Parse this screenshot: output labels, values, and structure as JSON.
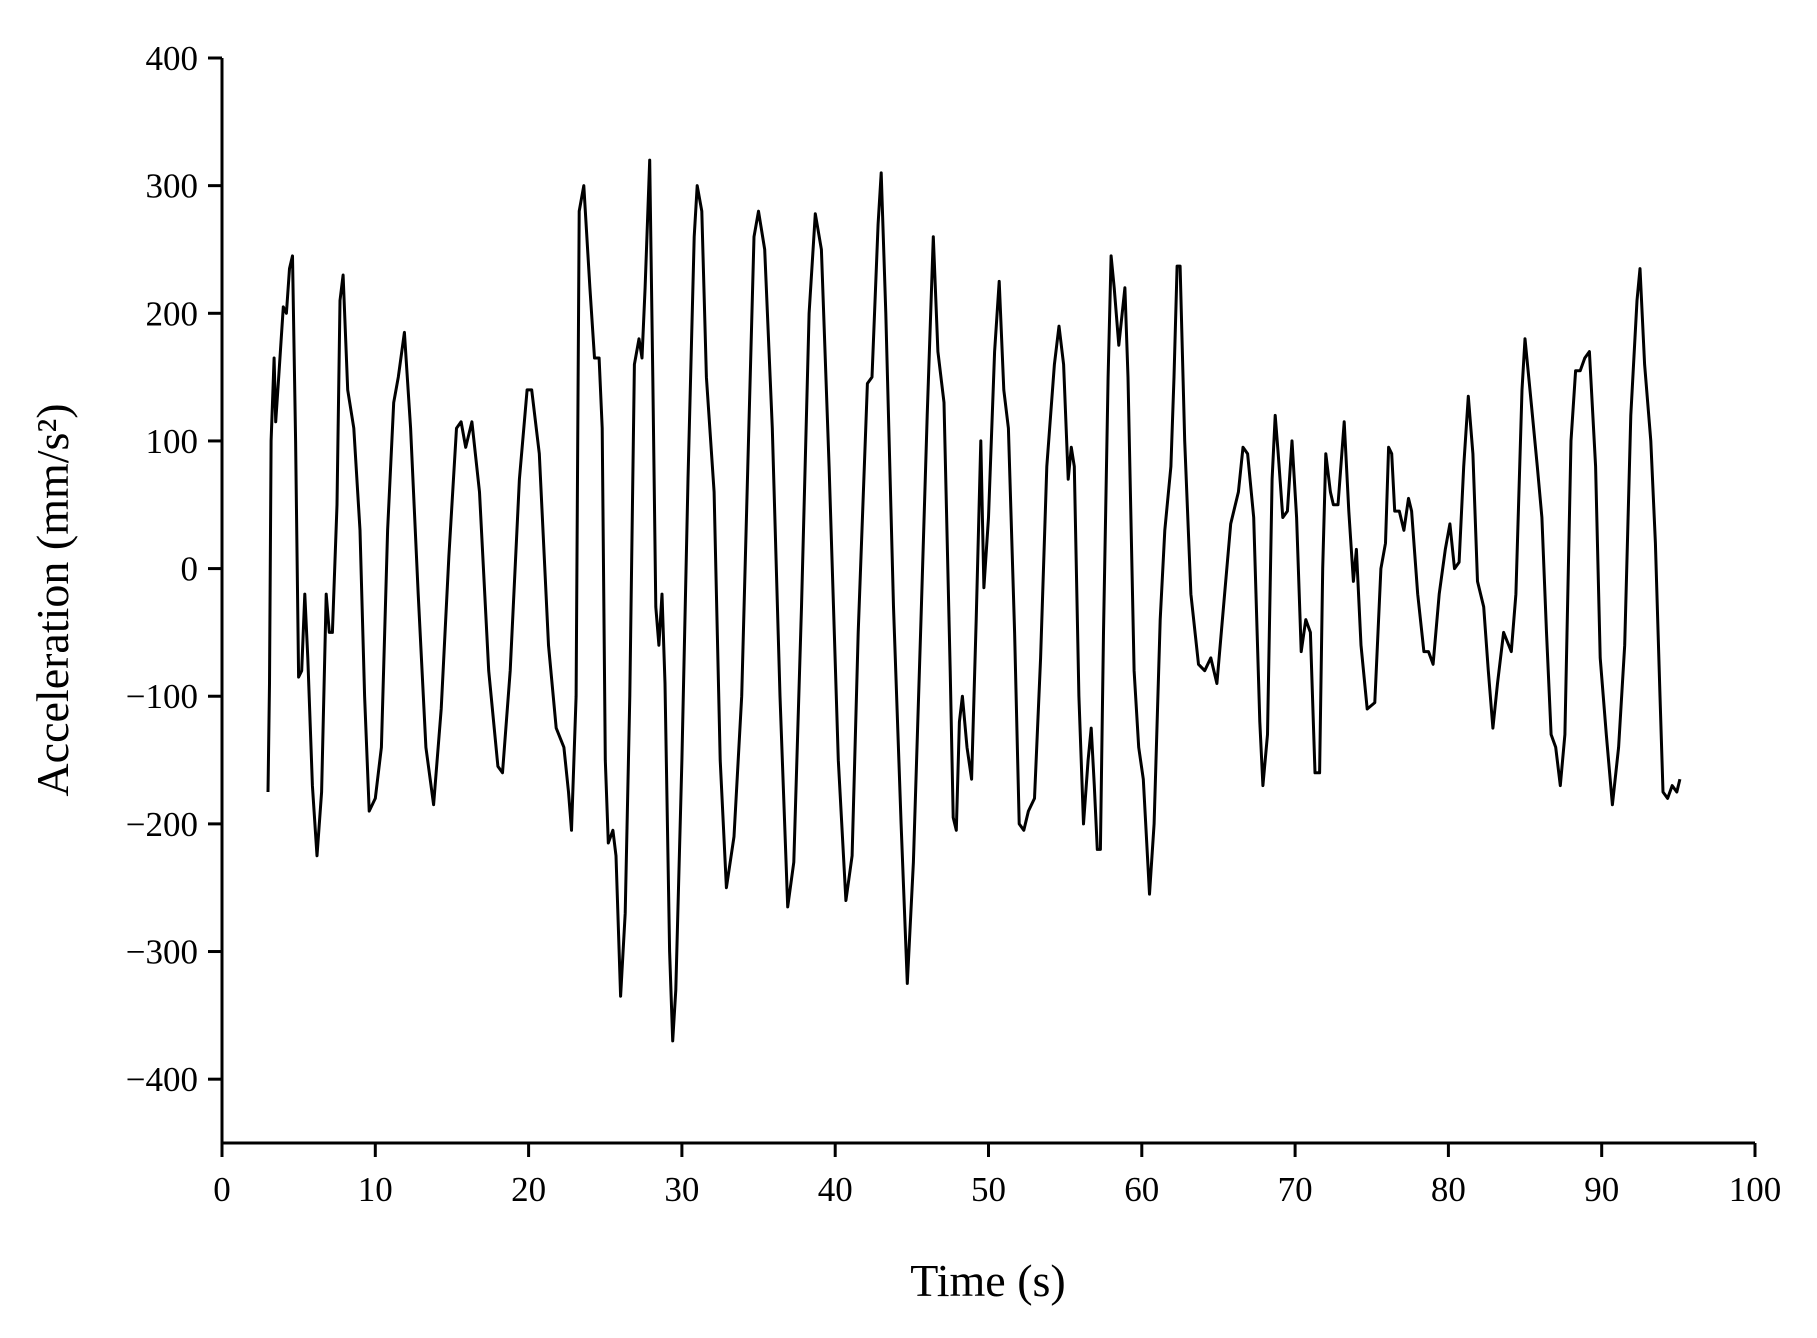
{
  "chart_data": {
    "type": "line",
    "xlabel": "Time (s)",
    "ylabel": "Acceleration (mm/s²)",
    "xlim": [
      0,
      100
    ],
    "xticks": [
      0,
      10,
      20,
      30,
      40,
      50,
      60,
      70,
      80,
      90,
      100
    ],
    "ylim": [
      -450,
      400
    ],
    "yticks": [
      {
        "value": -400,
        "label": "−400"
      },
      {
        "value": -300,
        "label": "−300"
      },
      {
        "value": -200,
        "label": "−200"
      },
      {
        "value": -100,
        "label": "−100"
      },
      0,
      100,
      200,
      300,
      400
    ],
    "grid": false,
    "color": "#000000",
    "x": [
      3.0,
      3.1,
      3.2,
      3.4,
      3.5,
      3.7,
      4.0,
      4.2,
      4.4,
      4.6,
      4.8,
      5.0,
      5.2,
      5.4,
      5.6,
      5.9,
      6.2,
      6.5,
      6.8,
      7.0,
      7.2,
      7.5,
      7.7,
      7.9,
      8.2,
      8.6,
      9.0,
      9.3,
      9.6,
      10.0,
      10.4,
      10.8,
      11.2,
      11.5,
      11.9,
      12.3,
      12.8,
      13.3,
      13.8,
      14.3,
      14.8,
      15.3,
      15.6,
      15.9,
      16.3,
      16.8,
      17.4,
      18.0,
      18.3,
      18.8,
      19.4,
      19.9,
      20.2,
      20.7,
      21.3,
      21.8,
      22.3,
      22.6,
      22.8,
      23.1,
      23.3,
      23.6,
      24.0,
      24.3,
      24.6,
      24.8,
      25.0,
      25.2,
      25.5,
      25.7,
      26.0,
      26.3,
      26.6,
      26.9,
      27.2,
      27.4,
      27.6,
      27.9,
      28.1,
      28.3,
      28.5,
      28.7,
      28.9,
      29.2,
      29.4,
      29.6,
      30.0,
      30.4,
      30.8,
      31.0,
      31.3,
      31.6,
      32.1,
      32.5,
      32.9,
      33.4,
      33.9,
      34.3,
      34.7,
      35.0,
      35.4,
      35.9,
      36.4,
      36.9,
      37.3,
      37.8,
      38.3,
      38.7,
      39.1,
      39.6,
      40.2,
      40.7,
      41.1,
      41.5,
      42.1,
      42.4,
      42.8,
      43.0,
      43.3,
      43.8,
      44.3,
      44.7,
      45.1,
      45.6,
      46.0,
      46.4,
      46.7,
      47.1,
      47.5,
      47.7,
      47.9,
      48.1,
      48.3,
      48.6,
      48.9,
      49.2,
      49.5,
      49.7,
      50.0,
      50.4,
      50.7,
      51.0,
      51.3,
      51.7,
      52.0,
      52.3,
      52.6,
      53.0,
      53.4,
      53.8,
      54.3,
      54.6,
      54.9,
      55.2,
      55.4,
      55.6,
      55.9,
      56.2,
      56.5,
      56.7,
      56.9,
      57.1,
      57.3,
      57.5,
      57.8,
      58.0,
      58.2,
      58.5,
      58.9,
      59.1,
      59.5,
      59.8,
      60.1,
      60.5,
      60.8,
      61.2,
      61.5,
      61.9,
      62.1,
      62.3,
      62.5,
      62.8,
      63.2,
      63.7,
      64.1,
      64.5,
      64.9,
      65.4,
      65.8,
      66.3,
      66.6,
      66.9,
      67.3,
      67.7,
      67.9,
      68.2,
      68.5,
      68.7,
      68.9,
      69.2,
      69.5,
      69.8,
      70.1,
      70.4,
      70.7,
      71.0,
      71.3,
      71.6,
      71.8,
      72.0,
      72.3,
      72.5,
      72.8,
      73.2,
      73.5,
      73.8,
      74.0,
      74.3,
      74.7,
      75.2,
      75.6,
      75.9,
      76.1,
      76.3,
      76.5,
      76.8,
      77.1,
      77.4,
      77.6,
      78.0,
      78.4,
      78.7,
      79.0,
      79.4,
      79.8,
      80.1,
      80.4,
      80.7,
      81.0,
      81.3,
      81.6,
      81.9,
      82.3,
      82.6,
      82.9,
      83.2,
      83.6,
      84.1,
      84.4,
      84.8,
      85.0,
      85.4,
      85.8,
      86.1,
      86.4,
      86.7,
      87.0,
      87.3,
      87.6,
      88.0,
      88.3,
      88.6,
      88.9,
      89.2,
      89.6,
      89.9,
      90.3,
      90.7,
      91.1,
      91.5,
      91.9,
      92.3,
      92.5,
      92.8,
      93.2,
      93.5,
      93.8,
      94.0,
      94.3,
      94.6,
      94.9,
      95.1
    ],
    "values": [
      -175,
      -90,
      100,
      165,
      115,
      150,
      205,
      200,
      235,
      245,
      100,
      -85,
      -80,
      -20,
      -70,
      -170,
      -225,
      -175,
      -20,
      -50,
      -50,
      50,
      210,
      230,
      140,
      110,
      30,
      -100,
      -190,
      -180,
      -140,
      30,
      130,
      150,
      185,
      110,
      -20,
      -140,
      -185,
      -110,
      10,
      110,
      115,
      95,
      115,
      60,
      -80,
      -155,
      -160,
      -80,
      70,
      140,
      140,
      90,
      -60,
      -125,
      -140,
      -175,
      -205,
      -100,
      280,
      300,
      220,
      165,
      165,
      110,
      -150,
      -215,
      -205,
      -225,
      -335,
      -270,
      -100,
      160,
      180,
      165,
      220,
      320,
      150,
      -30,
      -60,
      -20,
      -90,
      -300,
      -370,
      -330,
      -150,
      70,
      260,
      300,
      280,
      150,
      60,
      -150,
      -250,
      -210,
      -100,
      80,
      260,
      280,
      250,
      110,
      -100,
      -265,
      -230,
      -30,
      200,
      278,
      250,
      80,
      -150,
      -260,
      -225,
      -50,
      145,
      150,
      270,
      310,
      200,
      -30,
      -200,
      -325,
      -230,
      -40,
      120,
      260,
      170,
      130,
      -80,
      -195,
      -205,
      -120,
      -100,
      -140,
      -165,
      -40,
      100,
      -15,
      40,
      170,
      225,
      140,
      110,
      -50,
      -200,
      -205,
      -190,
      -180,
      -70,
      80,
      160,
      190,
      160,
      70,
      95,
      80,
      -100,
      -200,
      -150,
      -125,
      -170,
      -220,
      -220,
      -50,
      150,
      245,
      220,
      175,
      220,
      150,
      -80,
      -140,
      -165,
      -255,
      -200,
      -40,
      30,
      80,
      150,
      237,
      237,
      100,
      -20,
      -75,
      -80,
      -70,
      -90,
      -20,
      35,
      60,
      95,
      90,
      40,
      -120,
      -170,
      -130,
      70,
      120,
      90,
      40,
      45,
      100,
      40,
      -65,
      -40,
      -50,
      -160,
      -160,
      0,
      90,
      60,
      50,
      50,
      115,
      45,
      -10,
      15,
      -60,
      -110,
      -105,
      0,
      20,
      95,
      90,
      45,
      45,
      30,
      55,
      45,
      -20,
      -65,
      -65,
      -75,
      -20,
      15,
      35,
      0,
      5,
      80,
      135,
      90,
      -10,
      -30,
      -80,
      -125,
      -90,
      -50,
      -65,
      -20,
      140,
      180,
      130,
      80,
      40,
      -50,
      -130,
      -140,
      -170,
      -130,
      100,
      155,
      155,
      165,
      170,
      80,
      -70,
      -130,
      -185,
      -140,
      -60,
      120,
      210,
      235,
      160,
      100,
      20,
      -100,
      -175,
      -180,
      -170,
      -175,
      -165
    ]
  }
}
